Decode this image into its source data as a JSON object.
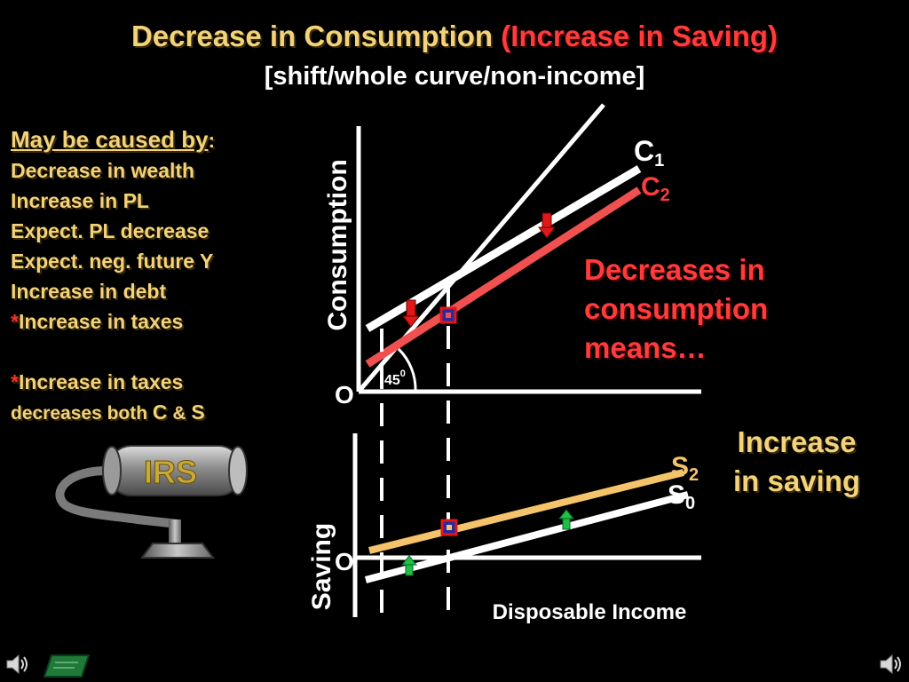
{
  "title": {
    "main": "Decrease in Consumption",
    "paren": "(Increase in Saving)",
    "subtitle": "[shift/whole curve/non-income]"
  },
  "causes": {
    "heading": "May be caused by",
    "heading_colon": ":",
    "items": [
      "Decrease in wealth",
      "Increase in PL",
      "Expect. PL decrease",
      "Expect. neg. future Y",
      "Increase in debt"
    ],
    "taxes_star": "*",
    "taxes_item": "Increase in taxes",
    "note_star": "*",
    "note_line1": "Increase in taxes",
    "note_line2_prefix": "decreases both ",
    "note_c": "C",
    "note_amp": " & ",
    "note_s": "S"
  },
  "messages": {
    "consumption": [
      "Decreases in",
      "consumption",
      "means…"
    ],
    "saving": [
      "Increase",
      "in saving"
    ]
  },
  "graph": {
    "consumption_axis_label": "Consumption",
    "saving_axis_label": "Saving",
    "x_axis_label": "Disposable Income",
    "origin_top": "O",
    "origin_bottom": "O",
    "angle_label": "45",
    "angle_superscript": "0",
    "c1_label": "C",
    "c1_sub": "1",
    "c2_label": "C",
    "c2_sub": "2",
    "s2_label": "S",
    "s2_sub": "2",
    "s0_label": "S",
    "s0_sub": "0"
  },
  "colors": {
    "title": "#f2d27a",
    "highlight_red": "#ff3b3b",
    "c2_line": "#f05050",
    "s2_line": "#f5c46a",
    "arrow_down": "#e01818",
    "arrow_up": "#20c040"
  },
  "icons": [
    "irs-vacuum-icon",
    "speaker-icon",
    "chalkboard-icon",
    "speaker-icon"
  ]
}
